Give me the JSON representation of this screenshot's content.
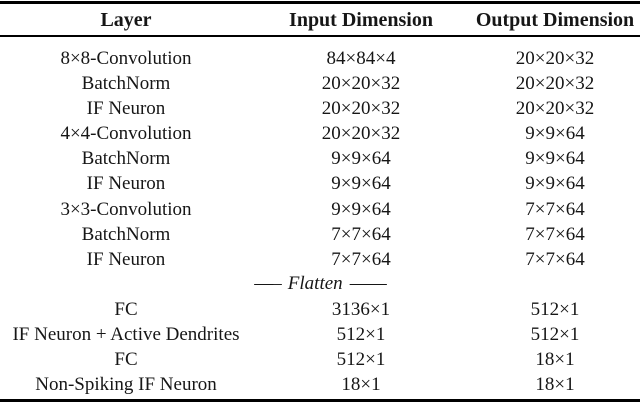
{
  "page": {
    "background_color": "#ffffff",
    "text_color": "#161616",
    "rule_color": "#000000"
  },
  "table": {
    "headers": [
      {
        "label": "Layer"
      },
      {
        "label": "Input Dimension"
      },
      {
        "label": "Output Dimension"
      }
    ],
    "rows": [
      {
        "type": "data",
        "layer": "8×8-Convolution",
        "input": "84×84×4",
        "output": "20×20×32"
      },
      {
        "type": "data",
        "layer": "BatchNorm",
        "input": "20×20×32",
        "output": "20×20×32"
      },
      {
        "type": "data",
        "layer": "IF Neuron",
        "input": "20×20×32",
        "output": "20×20×32"
      },
      {
        "type": "data",
        "layer": "4×4-Convolution",
        "input": "20×20×32",
        "output": "9×9×64"
      },
      {
        "type": "data",
        "layer": "BatchNorm",
        "input": "9×9×64",
        "output": "9×9×64"
      },
      {
        "type": "data",
        "layer": "IF Neuron",
        "input": "9×9×64",
        "output": "9×9×64"
      },
      {
        "type": "data",
        "layer": "3×3-Convolution",
        "input": "9×9×64",
        "output": "7×7×64"
      },
      {
        "type": "data",
        "layer": "BatchNorm",
        "input": "7×7×64",
        "output": "7×7×64"
      },
      {
        "type": "data",
        "layer": "IF Neuron",
        "input": "7×7×64",
        "output": "7×7×64"
      },
      {
        "type": "divider",
        "prefix": "—–",
        "label": "Flatten",
        "suffix": "——"
      },
      {
        "type": "data",
        "layer": "FC",
        "input": "3136×1",
        "output": "512×1"
      },
      {
        "type": "data",
        "layer": "IF Neuron + Active Dendrites",
        "input": "512×1",
        "output": "512×1"
      },
      {
        "type": "data",
        "layer": "FC",
        "input": "512×1",
        "output": "18×1"
      },
      {
        "type": "data",
        "layer": "Non-Spiking IF Neuron",
        "input": "18×1",
        "output": "18×1"
      }
    ]
  }
}
